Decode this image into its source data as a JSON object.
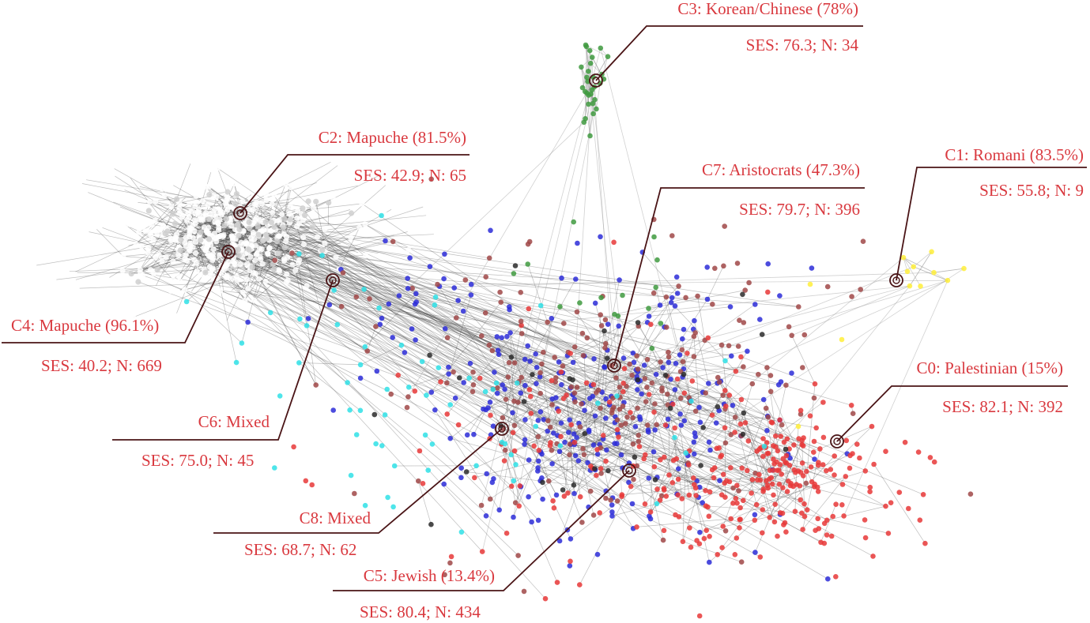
{
  "palette": {
    "label_text": "#d9393f",
    "leader": "#4a1416",
    "c0_palestinian": "#e83838",
    "c1_romani": "#ffef3a",
    "c2_mapuche": "#cfcfcf",
    "c3_korean": "#3f9a3f",
    "c4_mapuche": "#ffffff",
    "c5_jewish": "#2d2dd8",
    "c6_mixed": "#2a2a2a",
    "c7_aristocrats": "#a04848",
    "c8_mixed": "#2fe0e6"
  },
  "clusters": [
    {
      "id": "c0",
      "name": "C0: Palestinian (15%)",
      "stats": "SES: 82.1; N: 392"
    },
    {
      "id": "c1",
      "name": "C1: Romani (83.5%)",
      "stats": "SES: 55.8; N: 9"
    },
    {
      "id": "c2",
      "name": "C2: Mapuche (81.5%)",
      "stats": "SES: 42.9; N: 65"
    },
    {
      "id": "c3",
      "name": "C3: Korean/Chinese (78%)",
      "stats": "SES: 76.3; N: 34"
    },
    {
      "id": "c4",
      "name": "C4: Mapuche (96.1%)",
      "stats": "SES: 40.2; N: 669"
    },
    {
      "id": "c5",
      "name": "C5: Jewish (13.4%)",
      "stats": "SES: 80.4; N: 434"
    },
    {
      "id": "c6",
      "name": "C6: Mixed",
      "stats": "SES: 75.0; N: 45"
    },
    {
      "id": "c7",
      "name": "C7: Aristocrats (47.3%)",
      "stats": "SES: 79.7; N: 396"
    },
    {
      "id": "c8",
      "name": "C8: Mixed",
      "stats": "SES: 68.7; N: 62"
    }
  ]
}
